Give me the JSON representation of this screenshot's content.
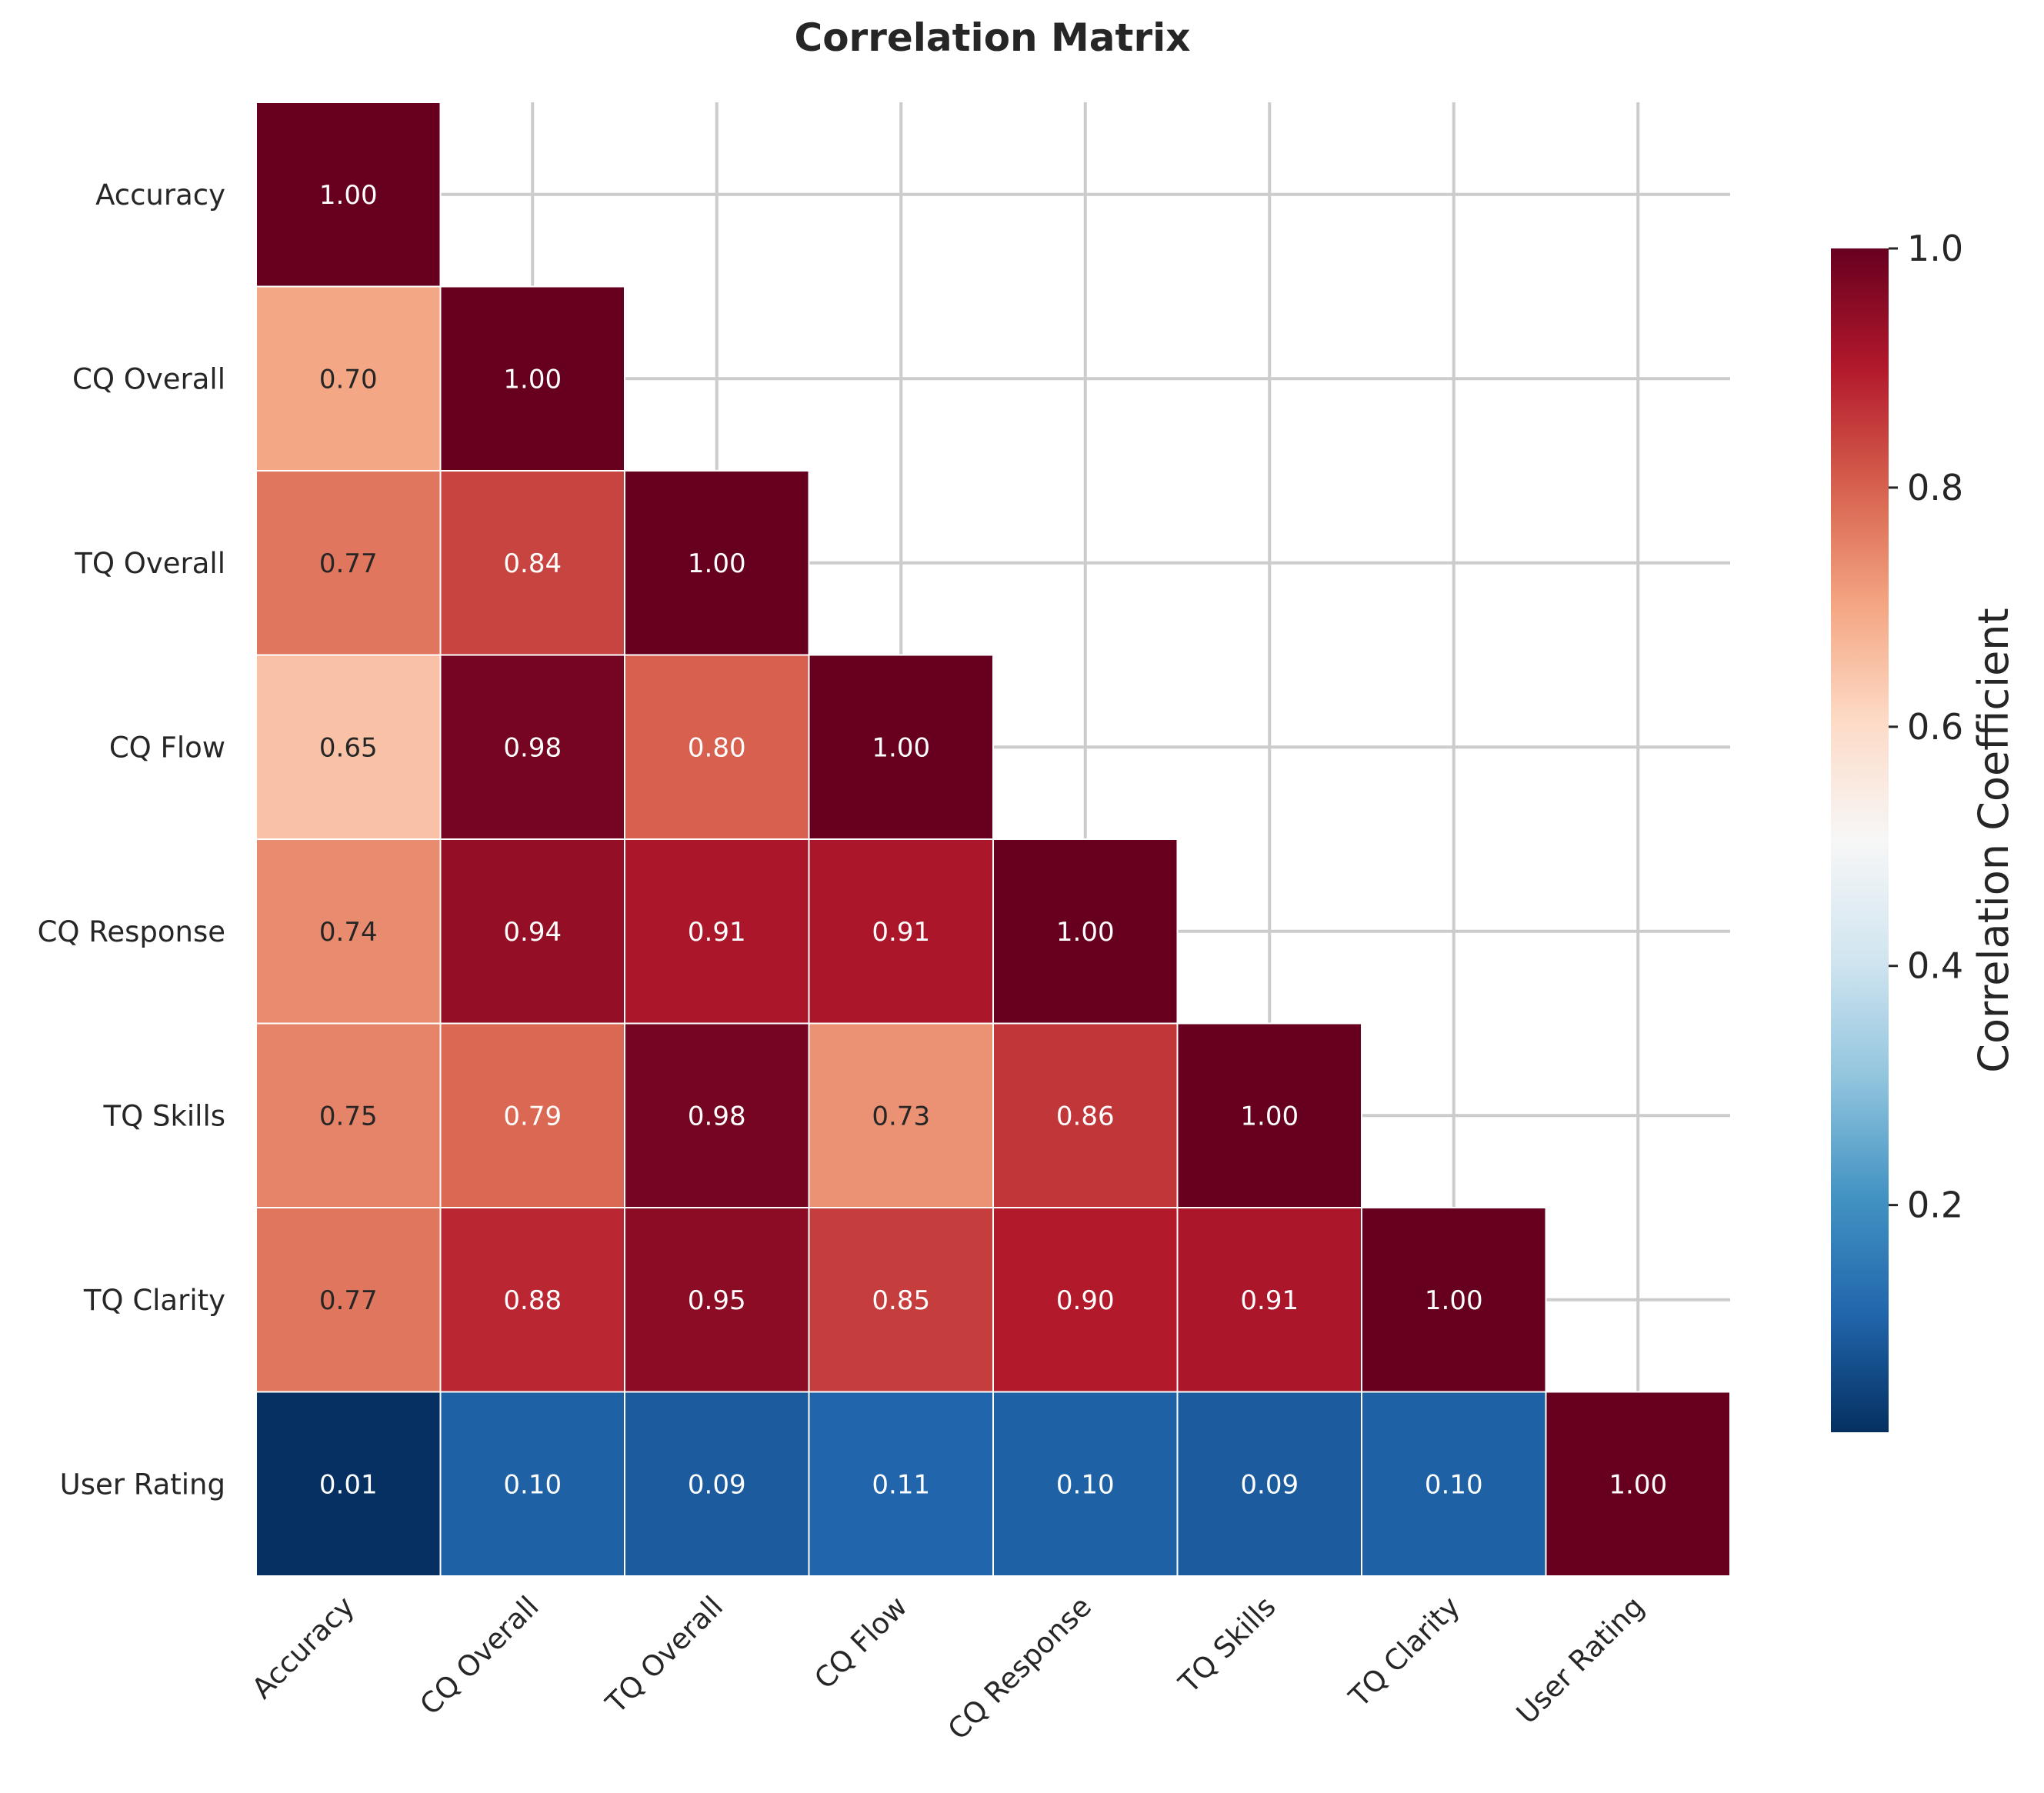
{
  "chart_data": {
    "type": "heatmap",
    "title": "Correlation Matrix",
    "xlabel": "",
    "ylabel": "",
    "mask": "lower-triangle-including-diagonal",
    "rows": [
      "Accuracy",
      "CQ Overall",
      "TQ Overall",
      "CQ Flow",
      "CQ Response",
      "TQ Skills",
      "TQ Clarity",
      "User Rating"
    ],
    "columns": [
      "Accuracy",
      "CQ Overall",
      "TQ Overall",
      "CQ Flow",
      "CQ Response",
      "TQ Skills",
      "TQ Clarity",
      "User Rating"
    ],
    "values": [
      [
        1.0
      ],
      [
        0.7,
        1.0
      ],
      [
        0.77,
        0.84,
        1.0
      ],
      [
        0.65,
        0.98,
        0.8,
        1.0
      ],
      [
        0.74,
        0.94,
        0.91,
        0.91,
        1.0
      ],
      [
        0.75,
        0.79,
        0.98,
        0.73,
        0.86,
        1.0
      ],
      [
        0.77,
        0.88,
        0.95,
        0.85,
        0.9,
        0.91,
        1.0
      ],
      [
        0.01,
        0.1,
        0.09,
        0.11,
        0.1,
        0.09,
        0.1,
        1.0
      ]
    ],
    "value_format": "2 decimals",
    "grid": true,
    "colormap": "RdBu_r",
    "colorbar": {
      "label": "Correlation Coefficient",
      "range": [
        0.01,
        1.0
      ],
      "ticks": [
        0.2,
        0.4,
        0.6,
        0.8,
        1.0
      ],
      "tick_labels": [
        "0.2",
        "0.4",
        "0.6",
        "0.8",
        "1.0"
      ],
      "placement": "right"
    },
    "colors": {
      "grid": "#cccccc",
      "cell_border": "#ffffff",
      "text_dark": "#262626",
      "text_light": "#ffffff",
      "title": "#262626"
    }
  }
}
